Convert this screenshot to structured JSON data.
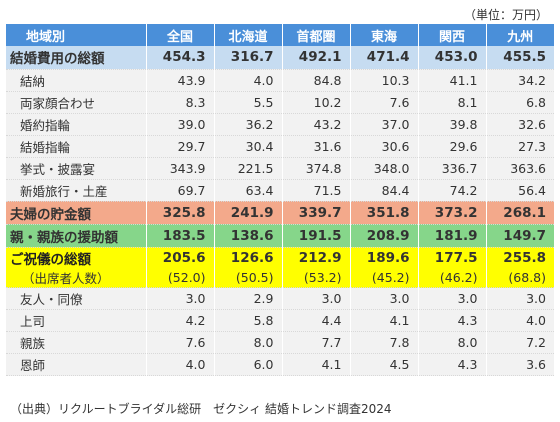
{
  "unit_label": "（単位：万円）",
  "header": {
    "label": "地域別",
    "regions": [
      "全国",
      "北海道",
      "首都圏",
      "東海",
      "関西",
      "九州"
    ]
  },
  "total": {
    "label": "結婚費用の総額",
    "values": [
      "454.3",
      "316.7",
      "492.1",
      "471.4",
      "453.0",
      "455.5"
    ]
  },
  "items": [
    {
      "label": "結納",
      "values": [
        "43.9",
        "4.0",
        "84.8",
        "10.3",
        "41.1",
        "34.2"
      ]
    },
    {
      "label": "両家顔合わせ",
      "values": [
        "8.3",
        "5.5",
        "10.2",
        "7.6",
        "8.1",
        "6.8"
      ]
    },
    {
      "label": "婚約指輪",
      "values": [
        "39.0",
        "36.2",
        "43.2",
        "37.0",
        "39.8",
        "32.6"
      ]
    },
    {
      "label": "結婚指輪",
      "values": [
        "29.7",
        "30.4",
        "31.6",
        "30.6",
        "29.6",
        "27.3"
      ]
    },
    {
      "label": "挙式・披露宴",
      "values": [
        "343.9",
        "221.5",
        "374.8",
        "348.0",
        "336.7",
        "363.6"
      ]
    },
    {
      "label": "新婚旅行・土産",
      "values": [
        "69.7",
        "63.4",
        "71.5",
        "84.4",
        "74.2",
        "56.4"
      ]
    }
  ],
  "savings": {
    "label": "夫婦の貯金額",
    "values": [
      "325.8",
      "241.9",
      "339.7",
      "351.8",
      "373.2",
      "268.1"
    ]
  },
  "support": {
    "label": "親・親族の援助額",
    "values": [
      "183.5",
      "138.6",
      "191.5",
      "208.9",
      "181.9",
      "149.7"
    ]
  },
  "gift": {
    "label": "ご祝儀の総額",
    "values": [
      "205.6",
      "126.6",
      "212.9",
      "189.6",
      "177.5",
      "255.8"
    ]
  },
  "attendees": {
    "label": "（出席者人数）",
    "values": [
      "(52.0)",
      "(50.5)",
      "(53.2)",
      "(45.2)",
      "(46.2)",
      "(68.8)"
    ]
  },
  "gift_items": [
    {
      "label": "友人・同僚",
      "values": [
        "3.0",
        "2.9",
        "3.0",
        "3.0",
        "3.0",
        "3.0"
      ]
    },
    {
      "label": "上司",
      "values": [
        "4.2",
        "5.8",
        "4.4",
        "4.1",
        "4.3",
        "4.0"
      ]
    },
    {
      "label": "親族",
      "values": [
        "7.6",
        "8.0",
        "7.7",
        "7.8",
        "8.0",
        "7.2"
      ]
    },
    {
      "label": "恩師",
      "values": [
        "4.0",
        "6.0",
        "4.1",
        "4.5",
        "4.3",
        "3.6"
      ]
    }
  ],
  "source": "（出典）リクルートブライダル総研　ゼクシィ 結婚トレンド調査2024"
}
